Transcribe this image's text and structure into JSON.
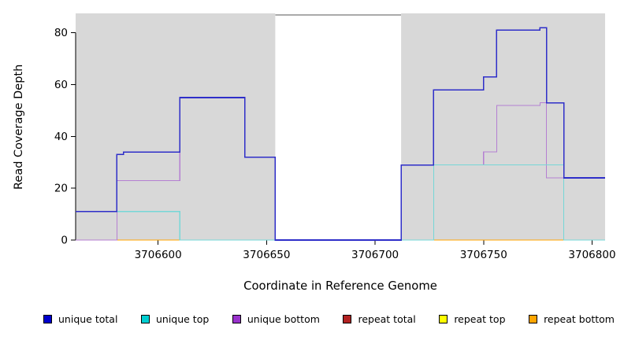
{
  "chart_data": {
    "type": "line",
    "subtype": "step",
    "title": "",
    "xlabel": "Coordinate in Reference Genome",
    "ylabel": "Read Coverage Depth",
    "xlim": [
      3706562,
      3706806
    ],
    "ylim": [
      0,
      87.5
    ],
    "x_ticks": [
      3706600,
      3706650,
      3706700,
      3706750,
      3706800
    ],
    "y_ticks": [
      0,
      20,
      40,
      60,
      80
    ],
    "grid": false,
    "legend_position": "bottom",
    "plot_background": "#ffffff",
    "background_bands": [
      {
        "x_start": 3706562,
        "x_end": 3706654,
        "color": "#d8d8d8"
      },
      {
        "x_start": 3706712,
        "x_end": 3706806,
        "color": "#d8d8d8"
      }
    ],
    "gap": {
      "x_start": 3706654,
      "x_end": 3706712,
      "top_line_color": "#555555"
    },
    "series": [
      {
        "name": "repeat total",
        "color": "#b22222",
        "line_width": 1.1,
        "points": [
          [
            3706562,
            0
          ]
        ]
      },
      {
        "name": "repeat top",
        "color": "#ffff00",
        "line_width": 1.1,
        "points": [
          [
            3706562,
            0
          ]
        ]
      },
      {
        "name": "repeat bottom",
        "color": "#ffa500",
        "line_width": 1.1,
        "points": [
          [
            3706562,
            0
          ]
        ]
      },
      {
        "name": "unique bottom",
        "color": "#b57fd2",
        "line_width": 1.1,
        "points": [
          [
            3706562,
            0
          ],
          [
            3706581,
            23
          ],
          [
            3706610,
            55
          ],
          [
            3706640,
            32
          ],
          [
            3706654,
            0
          ],
          [
            3706712,
            29
          ],
          [
            3706750,
            34
          ],
          [
            3706756,
            52
          ],
          [
            3706776,
            53
          ],
          [
            3706779,
            24
          ]
        ]
      },
      {
        "name": "unique top",
        "color": "#76d7d7",
        "line_width": 1.1,
        "points": [
          [
            3706562,
            11
          ],
          [
            3706610,
            0
          ],
          [
            3706727,
            29
          ],
          [
            3706787,
            0
          ]
        ]
      },
      {
        "name": "unique total",
        "color": "#2e2ec9",
        "line_width": 1.6,
        "points": [
          [
            3706562,
            11
          ],
          [
            3706581,
            33
          ],
          [
            3706584,
            34
          ],
          [
            3706610,
            55
          ],
          [
            3706640,
            32
          ],
          [
            3706654,
            0
          ],
          [
            3706712,
            29
          ],
          [
            3706727,
            58
          ],
          [
            3706750,
            63
          ],
          [
            3706756,
            81
          ],
          [
            3706776,
            82
          ],
          [
            3706779,
            53
          ],
          [
            3706787,
            24
          ]
        ]
      }
    ],
    "legend": [
      {
        "label": "unique total",
        "color": "#0000cd"
      },
      {
        "label": "unique top",
        "color": "#00ced1"
      },
      {
        "label": "unique bottom",
        "color": "#9932cc"
      },
      {
        "label": "repeat total",
        "color": "#b22222"
      },
      {
        "label": "repeat top",
        "color": "#ffff00"
      },
      {
        "label": "repeat bottom",
        "color": "#ffa500"
      }
    ]
  }
}
